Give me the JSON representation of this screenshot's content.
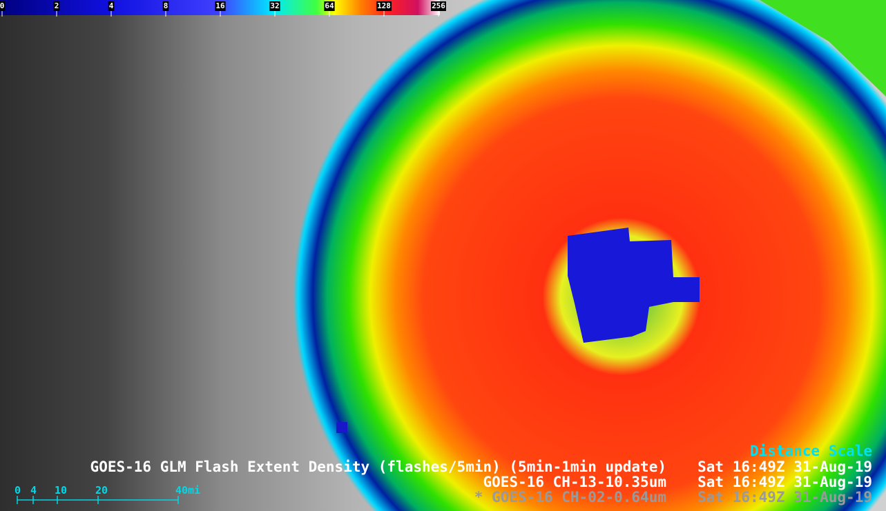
{
  "colorbar": {
    "labels": [
      0,
      2,
      4,
      8,
      16,
      32,
      64,
      128,
      256
    ]
  },
  "legend": {
    "title": "Distance Scale",
    "lines": [
      {
        "product": "GOES-16 GLM Flash Extent Density (flashes/5min) (5min-1min update)",
        "time": "Sat 16:49Z 31-Aug-19"
      },
      {
        "product": "GOES-16 CH-13-10.35um",
        "time": "Sat 16:49Z 31-Aug-19"
      },
      {
        "product": "* GOES-16 CH-02-0.64um",
        "time": "Sat 16:49Z 31-Aug-19"
      }
    ]
  },
  "distance_scale": {
    "labels": [
      "0",
      "4",
      "10",
      "20",
      "40mi"
    ]
  }
}
